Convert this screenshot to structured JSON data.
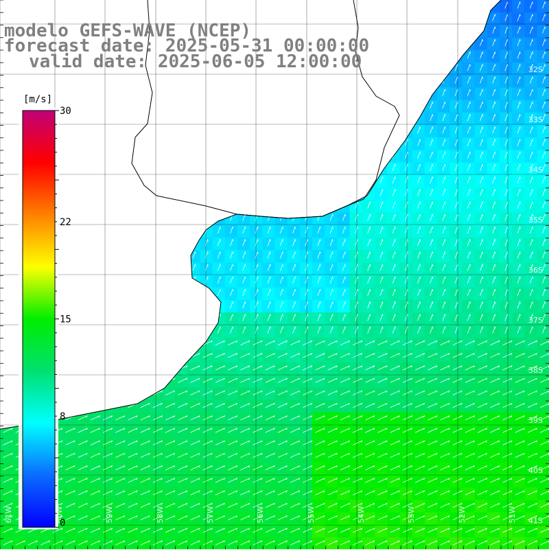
{
  "map": {
    "title_lines": [
      "modelo GEFS-WAVE (NCEP)",
      "forecast date: 2025-05-31 00:00:00",
      "valid date: 2025-06-05 12:00:00"
    ],
    "units_label": "[m/s]",
    "colorbar": {
      "min": 0,
      "max": 30,
      "tick_labels": [
        "30",
        "22",
        "15",
        "8",
        "0"
      ],
      "tick_values": [
        30,
        22,
        15,
        8,
        0
      ],
      "colors": [
        "#0000ff",
        "#0a6cff",
        "#00ffff",
        "#00e070",
        "#00ee00",
        "#ffff00",
        "#ff8000",
        "#ff0000",
        "#c00078"
      ]
    },
    "latitude_labels": [
      "32S",
      "33S",
      "34S",
      "35S",
      "36S",
      "37S",
      "38S",
      "39S",
      "40S",
      "41S"
    ],
    "longitude_labels": [
      "61W",
      "60W",
      "59W",
      "58W",
      "57W",
      "56W",
      "55W",
      "54W",
      "53W",
      "52W",
      "51W"
    ],
    "colors": {
      "land": "#ffffff",
      "grid": "#000000",
      "arrows": "#ffffff",
      "title": "#808080"
    }
  }
}
